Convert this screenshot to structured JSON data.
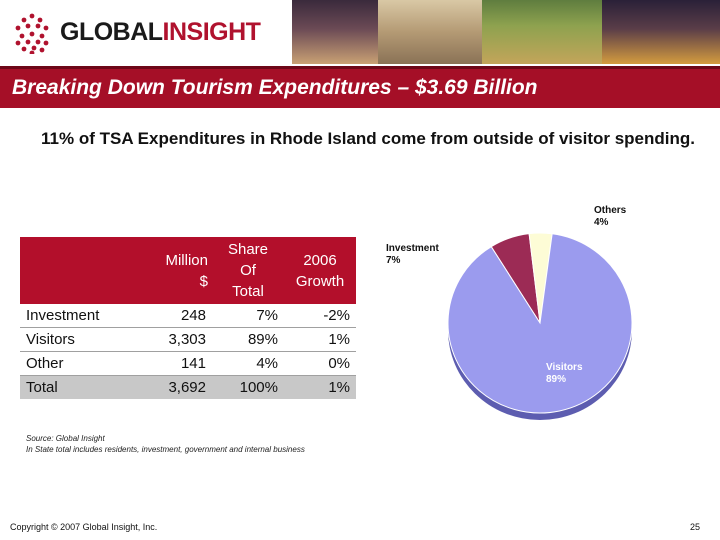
{
  "brand": {
    "word1": "GLOBAL",
    "word2": "INSIGHT"
  },
  "title": "Breaking Down Tourism Expenditures – $3.69 Billion",
  "subtitle": "11% of TSA Expenditures in Rhode Island come from outside of visitor spending.",
  "table": {
    "headers": {
      "million": [
        "Million",
        "$"
      ],
      "share": [
        "Share",
        "Of",
        "Total"
      ],
      "growth": [
        "2006",
        "Growth"
      ]
    },
    "rows": [
      {
        "label": "Investment",
        "million": "248",
        "share": "7%",
        "growth": "-2%"
      },
      {
        "label": "Visitors",
        "million": "3,303",
        "share": "89%",
        "growth": "1%"
      },
      {
        "label": "Other",
        "million": "141",
        "share": "4%",
        "growth": "0%"
      }
    ],
    "total": {
      "label": "Total",
      "million": "3,692",
      "share": "100%",
      "growth": "1%"
    }
  },
  "chart_data": {
    "type": "pie",
    "slices": [
      {
        "name": "Visitors",
        "value": 89,
        "label": "89%",
        "color": "#9b9bee"
      },
      {
        "name": "Investment",
        "value": 7,
        "label": "7%",
        "color": "#9c2b55"
      },
      {
        "name": "Others",
        "value": 4,
        "label": "4%",
        "color": "#fdfcd6"
      }
    ]
  },
  "source": {
    "line1": "Source:  Global Insight",
    "line2": "In State total includes residents, investment, government and internal business"
  },
  "footer": {
    "copyright": "Copyright © 2007 Global Insight, Inc.",
    "page": "25"
  }
}
